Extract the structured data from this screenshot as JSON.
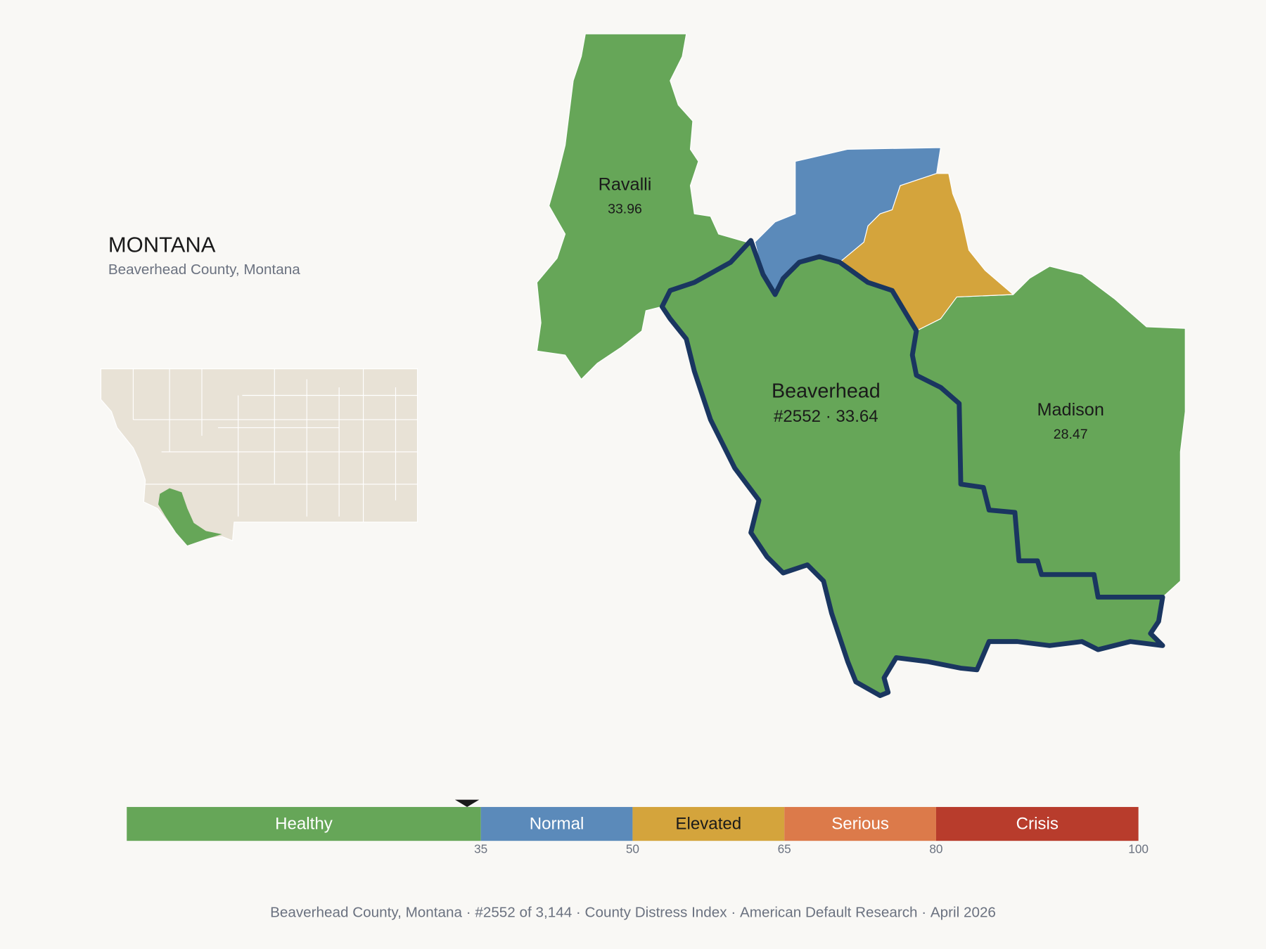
{
  "header": {
    "title": "MONTANA",
    "subtitle": "Beaverhead County, Montana"
  },
  "map": {
    "selected": 1,
    "counties": [
      {
        "name": "Ravalli",
        "value": 33.96,
        "color": "#66a658"
      },
      {
        "name": "Beaverhead",
        "value": 33.64,
        "value_label": "#2552 · 33.64",
        "color": "#66a658"
      },
      {
        "name": "Madison",
        "value": 28.47,
        "color": "#66a658"
      },
      {
        "name": null,
        "color": "#5b8aba"
      },
      {
        "name": null,
        "color": "#d4a43c"
      }
    ]
  },
  "scale": {
    "range": [
      0,
      100
    ],
    "ticks": [
      35,
      50,
      65,
      80,
      100
    ],
    "segments": [
      {
        "label": "Healthy",
        "color": "#66a658",
        "text_color": "#ffffff"
      },
      {
        "label": "Normal",
        "color": "#5b8aba",
        "text_color": "#ffffff"
      },
      {
        "label": "Elevated",
        "color": "#d4a43c",
        "text_color": "#1a1a1a"
      },
      {
        "label": "Serious",
        "color": "#dc7a4a",
        "text_color": "#ffffff"
      },
      {
        "label": "Crisis",
        "color": "#b83c2c",
        "text_color": "#ffffff"
      }
    ]
  },
  "footer": {
    "items": [
      "Beaverhead County, Montana",
      "#2552 of 3,144",
      "County Distress Index",
      "American Default Research",
      "April 2026"
    ]
  }
}
